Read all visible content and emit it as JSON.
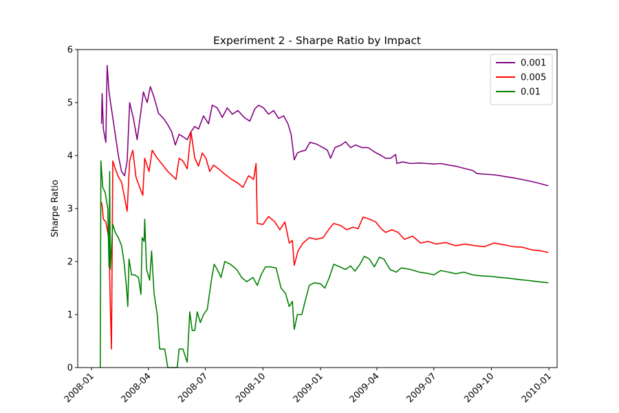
{
  "chart_data": {
    "type": "line",
    "title": "Experiment 2 - Sharpe Ratio by Impact",
    "xlabel": "",
    "ylabel": "Sharpe Ratio",
    "xlim": [
      "2007-12-10",
      "2010-01-14"
    ],
    "ylim": [
      0,
      6
    ],
    "y_ticks": [
      0,
      1,
      2,
      3,
      4,
      5,
      6
    ],
    "x_ticks": [
      "2008-01",
      "2008-04",
      "2008-07",
      "2008-10",
      "2009-01",
      "2009-04",
      "2009-07",
      "2009-10",
      "2010-01"
    ],
    "x_tick_rotation": 45,
    "grid": false,
    "legend_position": "top-right",
    "series": [
      {
        "name": "0.001",
        "color": "#800080",
        "points": [
          [
            "2008-01-17",
            4.6
          ],
          [
            "2008-01-18",
            5.17
          ],
          [
            "2008-01-20",
            4.5
          ],
          [
            "2008-01-24",
            4.25
          ],
          [
            "2008-01-26",
            5.7
          ],
          [
            "2008-01-29",
            5.2
          ],
          [
            "2008-02-03",
            4.8
          ],
          [
            "2008-02-08",
            4.4
          ],
          [
            "2008-02-13",
            4.0
          ],
          [
            "2008-02-18",
            3.7
          ],
          [
            "2008-02-23",
            3.62
          ],
          [
            "2008-02-27",
            3.9
          ],
          [
            "2008-03-02",
            5.0
          ],
          [
            "2008-03-08",
            4.7
          ],
          [
            "2008-03-14",
            4.3
          ],
          [
            "2008-03-19",
            4.75
          ],
          [
            "2008-03-24",
            5.2
          ],
          [
            "2008-03-30",
            5.0
          ],
          [
            "2008-04-04",
            5.3
          ],
          [
            "2008-04-10",
            5.1
          ],
          [
            "2008-04-17",
            4.8
          ],
          [
            "2008-04-25",
            4.7
          ],
          [
            "2008-05-01",
            4.6
          ],
          [
            "2008-05-08",
            4.45
          ],
          [
            "2008-05-14",
            4.2
          ],
          [
            "2008-05-20",
            4.4
          ],
          [
            "2008-05-27",
            4.35
          ],
          [
            "2008-06-02",
            4.3
          ],
          [
            "2008-06-08",
            4.45
          ],
          [
            "2008-06-14",
            4.55
          ],
          [
            "2008-06-20",
            4.5
          ],
          [
            "2008-06-28",
            4.75
          ],
          [
            "2008-07-06",
            4.6
          ],
          [
            "2008-07-12",
            4.95
          ],
          [
            "2008-07-20",
            4.9
          ],
          [
            "2008-07-28",
            4.72
          ],
          [
            "2008-08-05",
            4.9
          ],
          [
            "2008-08-13",
            4.78
          ],
          [
            "2008-08-22",
            4.85
          ],
          [
            "2008-09-01",
            4.72
          ],
          [
            "2008-09-10",
            4.65
          ],
          [
            "2008-09-18",
            4.88
          ],
          [
            "2008-09-24",
            4.95
          ],
          [
            "2008-10-02",
            4.9
          ],
          [
            "2008-10-10",
            4.78
          ],
          [
            "2008-10-18",
            4.85
          ],
          [
            "2008-10-26",
            4.7
          ],
          [
            "2008-11-03",
            4.75
          ],
          [
            "2008-11-10",
            4.6
          ],
          [
            "2008-11-15",
            4.4
          ],
          [
            "2008-11-20",
            3.92
          ],
          [
            "2008-11-25",
            4.05
          ],
          [
            "2008-12-01",
            4.08
          ],
          [
            "2008-12-08",
            4.1
          ],
          [
            "2008-12-15",
            4.25
          ],
          [
            "2008-12-25",
            4.22
          ],
          [
            "2009-01-05",
            4.15
          ],
          [
            "2009-01-12",
            4.1
          ],
          [
            "2009-01-17",
            3.95
          ],
          [
            "2009-01-24",
            4.15
          ],
          [
            "2009-02-03",
            4.2
          ],
          [
            "2009-02-10",
            4.26
          ],
          [
            "2009-02-18",
            4.15
          ],
          [
            "2009-02-26",
            4.2
          ],
          [
            "2009-03-08",
            4.15
          ],
          [
            "2009-03-18",
            4.15
          ],
          [
            "2009-03-28",
            4.07
          ],
          [
            "2009-04-08",
            4.0
          ],
          [
            "2009-04-15",
            3.95
          ],
          [
            "2009-04-23",
            3.95
          ],
          [
            "2009-05-01",
            4.02
          ],
          [
            "2009-05-03",
            3.85
          ],
          [
            "2009-05-12",
            3.88
          ],
          [
            "2009-05-25",
            3.85
          ],
          [
            "2009-06-08",
            3.86
          ],
          [
            "2009-06-20",
            3.85
          ],
          [
            "2009-07-01",
            3.84
          ],
          [
            "2009-07-12",
            3.85
          ],
          [
            "2009-07-25",
            3.82
          ],
          [
            "2009-08-05",
            3.8
          ],
          [
            "2009-08-18",
            3.76
          ],
          [
            "2009-09-01",
            3.72
          ],
          [
            "2009-09-08",
            3.66
          ],
          [
            "2009-09-20",
            3.65
          ],
          [
            "2009-10-01",
            3.64
          ],
          [
            "2009-10-10",
            3.63
          ],
          [
            "2009-10-25",
            3.6
          ],
          [
            "2009-11-05",
            3.58
          ],
          [
            "2009-11-18",
            3.55
          ],
          [
            "2009-12-01",
            3.52
          ],
          [
            "2009-12-15",
            3.48
          ],
          [
            "2009-12-31",
            3.43
          ]
        ]
      },
      {
        "name": "0.005",
        "color": "#ff0000",
        "points": [
          [
            "2008-01-17",
            3.12
          ],
          [
            "2008-01-18",
            3.05
          ],
          [
            "2008-01-20",
            2.8
          ],
          [
            "2008-01-24",
            2.75
          ],
          [
            "2008-01-27",
            2.55
          ],
          [
            "2008-01-29",
            2.4
          ],
          [
            "2008-01-31",
            1.2
          ],
          [
            "2008-02-02",
            0.35
          ],
          [
            "2008-02-04",
            3.9
          ],
          [
            "2008-02-08",
            3.75
          ],
          [
            "2008-02-13",
            3.6
          ],
          [
            "2008-02-18",
            3.5
          ],
          [
            "2008-02-23",
            3.2
          ],
          [
            "2008-02-27",
            2.95
          ],
          [
            "2008-03-02",
            3.9
          ],
          [
            "2008-03-07",
            4.1
          ],
          [
            "2008-03-12",
            3.6
          ],
          [
            "2008-03-18",
            3.4
          ],
          [
            "2008-03-23",
            3.25
          ],
          [
            "2008-03-26",
            3.95
          ],
          [
            "2008-04-02",
            3.7
          ],
          [
            "2008-04-07",
            4.1
          ],
          [
            "2008-04-15",
            3.95
          ],
          [
            "2008-04-22",
            3.85
          ],
          [
            "2008-05-02",
            3.7
          ],
          [
            "2008-05-15",
            3.55
          ],
          [
            "2008-05-20",
            3.95
          ],
          [
            "2008-05-26",
            3.9
          ],
          [
            "2008-06-02",
            3.75
          ],
          [
            "2008-06-08",
            4.45
          ],
          [
            "2008-06-14",
            3.95
          ],
          [
            "2008-06-20",
            3.8
          ],
          [
            "2008-06-26",
            4.05
          ],
          [
            "2008-07-02",
            3.95
          ],
          [
            "2008-07-08",
            3.7
          ],
          [
            "2008-07-14",
            3.82
          ],
          [
            "2008-07-22",
            3.75
          ],
          [
            "2008-08-01",
            3.65
          ],
          [
            "2008-08-12",
            3.55
          ],
          [
            "2008-08-22",
            3.48
          ],
          [
            "2008-08-30",
            3.4
          ],
          [
            "2008-09-08",
            3.62
          ],
          [
            "2008-09-16",
            3.55
          ],
          [
            "2008-09-20",
            3.85
          ],
          [
            "2008-09-22",
            2.72
          ],
          [
            "2008-10-01",
            2.7
          ],
          [
            "2008-10-10",
            2.85
          ],
          [
            "2008-10-20",
            2.75
          ],
          [
            "2008-10-28",
            2.6
          ],
          [
            "2008-11-05",
            2.75
          ],
          [
            "2008-11-12",
            2.35
          ],
          [
            "2008-11-17",
            2.4
          ],
          [
            "2008-11-20",
            1.93
          ],
          [
            "2008-11-26",
            2.2
          ],
          [
            "2008-12-04",
            2.35
          ],
          [
            "2008-12-14",
            2.45
          ],
          [
            "2008-12-25",
            2.42
          ],
          [
            "2009-01-05",
            2.45
          ],
          [
            "2009-01-15",
            2.62
          ],
          [
            "2009-01-22",
            2.72
          ],
          [
            "2009-02-02",
            2.68
          ],
          [
            "2009-02-12",
            2.6
          ],
          [
            "2009-02-22",
            2.65
          ],
          [
            "2009-03-02",
            2.62
          ],
          [
            "2009-03-10",
            2.84
          ],
          [
            "2009-03-20",
            2.8
          ],
          [
            "2009-03-30",
            2.75
          ],
          [
            "2009-04-08",
            2.62
          ],
          [
            "2009-04-15",
            2.55
          ],
          [
            "2009-04-25",
            2.6
          ],
          [
            "2009-05-05",
            2.55
          ],
          [
            "2009-05-15",
            2.42
          ],
          [
            "2009-05-28",
            2.48
          ],
          [
            "2009-06-10",
            2.35
          ],
          [
            "2009-06-22",
            2.38
          ],
          [
            "2009-07-05",
            2.33
          ],
          [
            "2009-07-20",
            2.36
          ],
          [
            "2009-08-05",
            2.3
          ],
          [
            "2009-08-20",
            2.33
          ],
          [
            "2009-09-05",
            2.3
          ],
          [
            "2009-09-20",
            2.28
          ],
          [
            "2009-10-05",
            2.35
          ],
          [
            "2009-10-20",
            2.32
          ],
          [
            "2009-11-05",
            2.28
          ],
          [
            "2009-11-20",
            2.27
          ],
          [
            "2009-12-05",
            2.22
          ],
          [
            "2009-12-20",
            2.2
          ],
          [
            "2009-12-31",
            2.17
          ]
        ]
      },
      {
        "name": "0.01",
        "color": "#008000",
        "points": [
          [
            "2008-01-15",
            0.0
          ],
          [
            "2008-01-16",
            3.9
          ],
          [
            "2008-01-19",
            3.4
          ],
          [
            "2008-01-23",
            3.3
          ],
          [
            "2008-01-27",
            3.0
          ],
          [
            "2008-01-29",
            1.9
          ],
          [
            "2008-01-30",
            3.7
          ],
          [
            "2008-01-31",
            1.85
          ],
          [
            "2008-02-04",
            2.7
          ],
          [
            "2008-02-08",
            2.55
          ],
          [
            "2008-02-13",
            2.45
          ],
          [
            "2008-02-18",
            2.3
          ],
          [
            "2008-02-22",
            2.0
          ],
          [
            "2008-02-26",
            1.5
          ],
          [
            "2008-02-28",
            1.15
          ],
          [
            "2008-03-01",
            2.05
          ],
          [
            "2008-03-05",
            1.75
          ],
          [
            "2008-03-10",
            1.75
          ],
          [
            "2008-03-16",
            1.7
          ],
          [
            "2008-03-20",
            1.38
          ],
          [
            "2008-03-22",
            2.45
          ],
          [
            "2008-03-25",
            2.38
          ],
          [
            "2008-03-26",
            2.8
          ],
          [
            "2008-03-29",
            1.85
          ],
          [
            "2008-04-03",
            1.65
          ],
          [
            "2008-04-06",
            2.2
          ],
          [
            "2008-04-10",
            1.4
          ],
          [
            "2008-04-15",
            1.0
          ],
          [
            "2008-04-19",
            0.35
          ],
          [
            "2008-04-27",
            0.35
          ],
          [
            "2008-05-02",
            0.0
          ],
          [
            "2008-05-08",
            0.0
          ],
          [
            "2008-05-17",
            0.0
          ],
          [
            "2008-05-20",
            0.35
          ],
          [
            "2008-05-26",
            0.35
          ],
          [
            "2008-06-02",
            0.1
          ],
          [
            "2008-06-06",
            1.05
          ],
          [
            "2008-06-10",
            0.7
          ],
          [
            "2008-06-14",
            0.7
          ],
          [
            "2008-06-18",
            1.05
          ],
          [
            "2008-06-23",
            0.85
          ],
          [
            "2008-06-28",
            1.0
          ],
          [
            "2008-07-04",
            1.1
          ],
          [
            "2008-07-10",
            1.6
          ],
          [
            "2008-07-15",
            1.95
          ],
          [
            "2008-07-20",
            1.85
          ],
          [
            "2008-07-26",
            1.7
          ],
          [
            "2008-08-01",
            2.0
          ],
          [
            "2008-08-10",
            1.95
          ],
          [
            "2008-08-20",
            1.85
          ],
          [
            "2008-08-28",
            1.7
          ],
          [
            "2008-09-05",
            1.62
          ],
          [
            "2008-09-15",
            1.7
          ],
          [
            "2008-09-22",
            1.55
          ],
          [
            "2008-09-28",
            1.75
          ],
          [
            "2008-10-05",
            1.9
          ],
          [
            "2008-10-12",
            1.9
          ],
          [
            "2008-10-22",
            1.88
          ],
          [
            "2008-10-30",
            1.5
          ],
          [
            "2008-11-06",
            1.4
          ],
          [
            "2008-11-12",
            1.15
          ],
          [
            "2008-11-17",
            1.25
          ],
          [
            "2008-11-20",
            0.72
          ],
          [
            "2008-11-25",
            1.0
          ],
          [
            "2008-12-02",
            1.0
          ],
          [
            "2008-12-08",
            1.28
          ],
          [
            "2008-12-14",
            1.55
          ],
          [
            "2008-12-22",
            1.6
          ],
          [
            "2009-01-01",
            1.58
          ],
          [
            "2009-01-08",
            1.5
          ],
          [
            "2009-01-15",
            1.7
          ],
          [
            "2009-01-22",
            1.95
          ],
          [
            "2009-02-01",
            1.9
          ],
          [
            "2009-02-10",
            1.85
          ],
          [
            "2009-02-18",
            1.92
          ],
          [
            "2009-02-25",
            1.82
          ],
          [
            "2009-03-05",
            1.95
          ],
          [
            "2009-03-12",
            2.1
          ],
          [
            "2009-03-20",
            2.05
          ],
          [
            "2009-03-28",
            1.9
          ],
          [
            "2009-04-05",
            2.08
          ],
          [
            "2009-04-12",
            2.05
          ],
          [
            "2009-04-22",
            1.85
          ],
          [
            "2009-05-02",
            1.8
          ],
          [
            "2009-05-10",
            1.88
          ],
          [
            "2009-05-25",
            1.85
          ],
          [
            "2009-06-08",
            1.8
          ],
          [
            "2009-06-20",
            1.78
          ],
          [
            "2009-07-01",
            1.75
          ],
          [
            "2009-07-12",
            1.83
          ],
          [
            "2009-07-25",
            1.8
          ],
          [
            "2009-08-05",
            1.77
          ],
          [
            "2009-08-18",
            1.8
          ],
          [
            "2009-09-01",
            1.75
          ],
          [
            "2009-09-15",
            1.73
          ],
          [
            "2009-10-01",
            1.72
          ],
          [
            "2009-10-15",
            1.7
          ],
          [
            "2009-11-01",
            1.68
          ],
          [
            "2009-11-15",
            1.66
          ],
          [
            "2009-12-01",
            1.64
          ],
          [
            "2009-12-15",
            1.62
          ],
          [
            "2009-12-31",
            1.6
          ]
        ]
      }
    ]
  }
}
